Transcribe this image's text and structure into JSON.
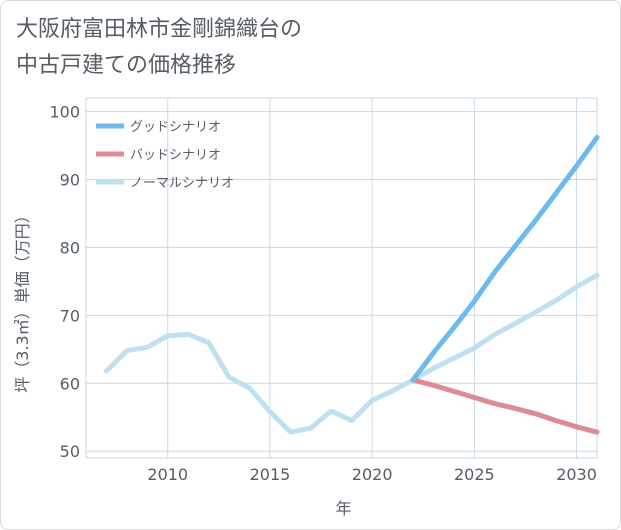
{
  "title_line1": "大阪府富田林市金剛錦織台の",
  "title_line2": "中古戸建ての価格推移",
  "chart_data": {
    "type": "line",
    "xlabel": "年",
    "ylabel": "坪（3.3㎡）単価（万円）",
    "xlim": [
      2006,
      2031
    ],
    "ylim": [
      49,
      102
    ],
    "xticks": [
      2010,
      2015,
      2020,
      2025,
      2030
    ],
    "yticks": [
      50,
      60,
      70,
      80,
      90,
      100
    ],
    "grid": true,
    "legend_position": "top-left",
    "series": [
      {
        "name": "グッドシナリオ",
        "color": "#6dbbec",
        "width": 5,
        "x": [
          2022,
          2023,
          2024,
          2025,
          2026,
          2027,
          2028,
          2029,
          2030,
          2031
        ],
        "y": [
          60.5,
          64.5,
          68.2,
          72.1,
          76.4,
          80.2,
          84.0,
          88.0,
          92.0,
          96.2
        ]
      },
      {
        "name": "バッドシナリオ",
        "color": "#df8b92",
        "width": 5,
        "x": [
          2022,
          2023,
          2024,
          2025,
          2026,
          2027,
          2028,
          2029,
          2030,
          2031
        ],
        "y": [
          60.5,
          59.7,
          58.8,
          57.9,
          57.0,
          56.3,
          55.5,
          54.5,
          53.6,
          52.8
        ]
      },
      {
        "name": "ノーマルシナリオ",
        "color": "#bfe0f1",
        "width": 5,
        "x": [
          2007,
          2008,
          2009,
          2010,
          2011,
          2012,
          2013,
          2014,
          2015,
          2016,
          2017,
          2018,
          2019,
          2020,
          2021,
          2022,
          2023,
          2024,
          2025,
          2026,
          2027,
          2028,
          2029,
          2030,
          2031
        ],
        "y": [
          61.8,
          64.8,
          65.3,
          67.0,
          67.2,
          66.0,
          60.9,
          59.3,
          55.8,
          52.8,
          53.4,
          55.9,
          54.5,
          57.5,
          58.9,
          60.5,
          62.2,
          63.7,
          65.2,
          67.2,
          68.8,
          70.5,
          72.2,
          74.2,
          75.9
        ]
      }
    ]
  }
}
